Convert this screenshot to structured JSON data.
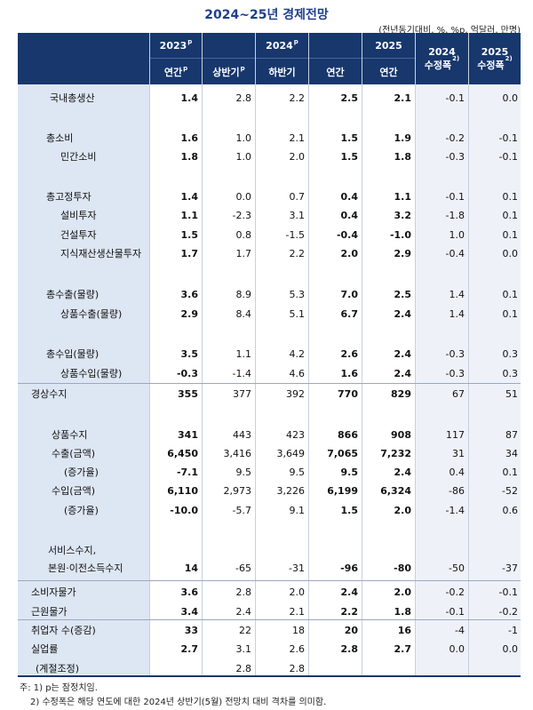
{
  "title": "2024~25년 경제전망",
  "unit": "(전년동기대비, %, %p, 억달러, 만명)",
  "headers": {
    "y2023": "2023",
    "y2023_sup": "p",
    "y2024": "2024",
    "y2024_sup": "p",
    "y2025": "2025",
    "rev2024_line1": "2024",
    "rev2024_line2": "수정폭",
    "rev2024_sup": "2)",
    "rev2025_line1": "2025",
    "rev2025_line2": "수정폭",
    "rev2025_sup": "2)",
    "annual_2023": "연간",
    "annual_2023_sup": "p",
    "h1": "상반기",
    "h1_sup": "p",
    "h2": "하반기",
    "annual_2024": "연간",
    "annual_2025": "연간"
  },
  "rows": [
    {
      "label": "국내총생산",
      "values": [
        "1.4",
        "2.8",
        "2.2",
        "2.5",
        "2.1",
        "-0.1",
        "0.0"
      ]
    },
    {
      "label": "총소비",
      "values": [
        "1.6",
        "1.0",
        "2.1",
        "1.5",
        "1.9",
        "-0.2",
        "-0.1"
      ]
    },
    {
      "label": "민간소비",
      "values": [
        "1.8",
        "1.0",
        "2.0",
        "1.5",
        "1.8",
        "-0.3",
        "-0.1"
      ]
    },
    {
      "label": "총고정투자",
      "values": [
        "1.4",
        "0.0",
        "0.7",
        "0.4",
        "1.1",
        "-0.1",
        "0.1"
      ]
    },
    {
      "label": "설비투자",
      "values": [
        "1.1",
        "-2.3",
        "3.1",
        "0.4",
        "3.2",
        "-1.8",
        "0.1"
      ]
    },
    {
      "label": "건설투자",
      "values": [
        "1.5",
        "0.8",
        "-1.5",
        "-0.4",
        "-1.0",
        "1.0",
        "0.1"
      ]
    },
    {
      "label": "지식재산생산물투자",
      "values": [
        "1.7",
        "1.7",
        "2.2",
        "2.0",
        "2.9",
        "-0.4",
        "0.0"
      ]
    },
    {
      "label": "총수출(물량)",
      "values": [
        "3.6",
        "8.9",
        "5.3",
        "7.0",
        "2.5",
        "1.4",
        "0.1"
      ]
    },
    {
      "label": "상품수출(물량)",
      "values": [
        "2.9",
        "8.4",
        "5.1",
        "6.7",
        "2.4",
        "1.4",
        "0.1"
      ]
    },
    {
      "label": "총수입(물량)",
      "values": [
        "3.5",
        "1.1",
        "4.2",
        "2.6",
        "2.4",
        "-0.3",
        "0.3"
      ]
    },
    {
      "label": "상품수입(물량)",
      "values": [
        "-0.3",
        "-1.4",
        "4.6",
        "1.6",
        "2.4",
        "-0.3",
        "0.3"
      ]
    },
    {
      "label": "경상수지",
      "values": [
        "355",
        "377",
        "392",
        "770",
        "829",
        "67",
        "51"
      ]
    },
    {
      "label": "상품수지",
      "values": [
        "341",
        "443",
        "423",
        "866",
        "908",
        "117",
        "87"
      ]
    },
    {
      "label": "수출(금액)",
      "values": [
        "6,450",
        "3,416",
        "3,649",
        "7,065",
        "7,232",
        "31",
        "34"
      ]
    },
    {
      "label": "(증가율)",
      "values": [
        "-7.1",
        "9.5",
        "9.5",
        "9.5",
        "2.4",
        "0.4",
        "0.1"
      ]
    },
    {
      "label": "수입(금액)",
      "values": [
        "6,110",
        "2,973",
        "3,226",
        "6,199",
        "6,324",
        "-86",
        "-52"
      ]
    },
    {
      "label": "(증가율)",
      "values": [
        "-10.0",
        "-5.7",
        "9.1",
        "1.5",
        "2.0",
        "-1.4",
        "0.6"
      ]
    },
    {
      "label": "서비스수지,",
      "values": [
        "",
        "",
        "",
        "",
        "",
        "",
        ""
      ]
    },
    {
      "label": "본원·이전소득수지",
      "values": [
        "14",
        "-65",
        "-31",
        "-96",
        "-80",
        "-50",
        "-37"
      ]
    },
    {
      "label": "소비자물가",
      "values": [
        "3.6",
        "2.8",
        "2.0",
        "2.4",
        "2.0",
        "-0.2",
        "-0.1"
      ]
    },
    {
      "label": "근원물가",
      "values": [
        "3.4",
        "2.4",
        "2.1",
        "2.2",
        "1.8",
        "-0.1",
        "-0.2"
      ]
    },
    {
      "label": "취업자 수(증감)",
      "values": [
        "33",
        "22",
        "18",
        "20",
        "16",
        "-4",
        "-1"
      ]
    },
    {
      "label": "실업률",
      "values": [
        "2.7",
        "3.1",
        "2.6",
        "2.8",
        "2.7",
        "0.0",
        "0.0"
      ]
    },
    {
      "label": "(계절조정)",
      "values": [
        "",
        "2.8",
        "2.8",
        "",
        "",
        "",
        ""
      ]
    }
  ],
  "notes": [
    "주: 1) p는 잠정치임.",
    "2) 수정폭은 해당 연도에 대한 2024년 상반기(5월) 전망치 대비 격차를 의미함."
  ]
}
